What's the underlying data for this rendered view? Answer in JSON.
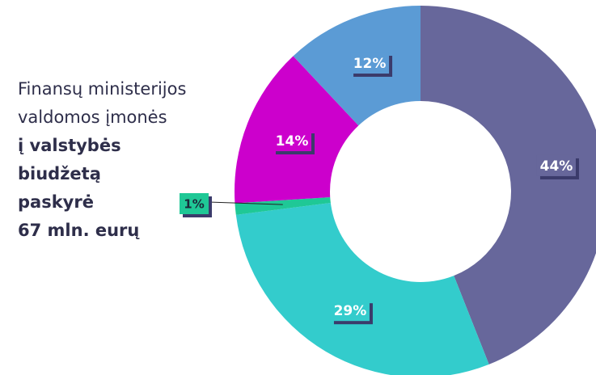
{
  "chart_data": {
    "type": "donut",
    "series": [
      {
        "values": [
          44,
          29,
          1,
          14,
          12
        ],
        "value_labels": [
          "44%",
          "29%",
          "1%",
          "14%",
          "12%"
        ],
        "colors": [
          "#67679b",
          "#33cccc",
          "#1fc896",
          "#cc00cc",
          "#5b9bd5"
        ]
      }
    ],
    "annotations": [
      {
        "text": "Finansų ministerijos",
        "bold": false
      },
      {
        "text": "valdomos įmonės",
        "bold": false
      },
      {
        "text": "į valstybės",
        "bold": true
      },
      {
        "text": "biudžetą",
        "bold": true
      },
      {
        "text": "paskyrė",
        "bold": true
      },
      {
        "text": "67 mln. eurų",
        "bold": true
      }
    ]
  }
}
